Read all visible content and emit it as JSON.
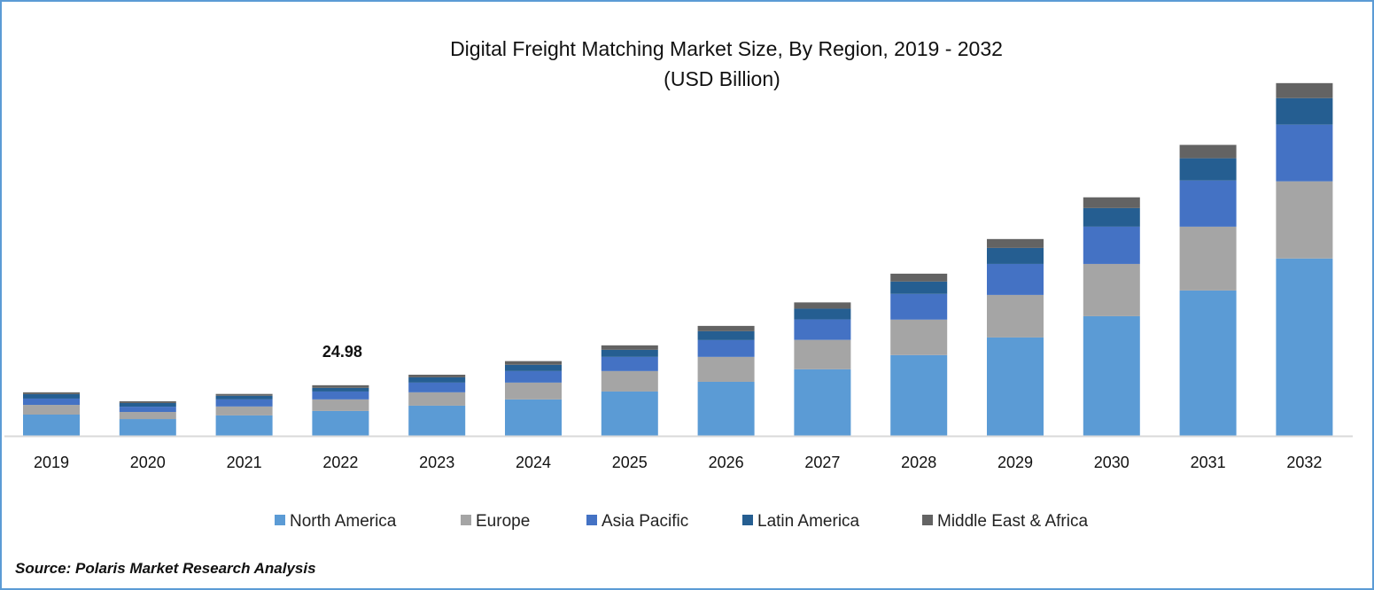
{
  "chart_data": {
    "type": "bar",
    "stacked": true,
    "title": "Digital Freight Matching Market Size, By Region, 2019 - 2032",
    "subtitle": "(USD Billion)",
    "xlabel": "",
    "ylabel": "",
    "ylim": [
      0,
      175
    ],
    "grid": false,
    "legend_position": "bottom",
    "categories": [
      "2019",
      "2020",
      "2021",
      "2022",
      "2023",
      "2024",
      "2025",
      "2026",
      "2027",
      "2028",
      "2029",
      "2030",
      "2031",
      "2032"
    ],
    "series": [
      {
        "name": "North America",
        "color": "#5b9bd5",
        "values": [
          10.5,
          8.3,
          10.1,
          12.3,
          14.9,
          18.0,
          21.9,
          26.7,
          32.9,
          39.9,
          48.6,
          59.1,
          71.8,
          87.6
        ]
      },
      {
        "name": "Europe",
        "color": "#a5a5a5",
        "values": [
          4.8,
          3.5,
          4.4,
          5.7,
          6.6,
          8.3,
          10.1,
          12.3,
          14.5,
          17.5,
          21.0,
          25.8,
          31.5,
          38.1
        ]
      },
      {
        "name": "Asia Pacific",
        "color": "#4472c4",
        "values": [
          3.1,
          2.6,
          3.5,
          3.9,
          4.8,
          5.7,
          7.0,
          8.3,
          10.1,
          12.7,
          15.3,
          18.4,
          22.8,
          28.0
        ]
      },
      {
        "name": "Latin America",
        "color": "#255e91",
        "values": [
          2.2,
          1.8,
          1.8,
          1.8,
          2.6,
          3.1,
          3.5,
          4.4,
          5.3,
          6.1,
          7.9,
          9.2,
          11.0,
          13.1
        ]
      },
      {
        "name": "Middle East & Africa",
        "color": "#636363",
        "values": [
          0.9,
          0.9,
          0.9,
          1.3,
          1.3,
          1.8,
          2.2,
          2.6,
          3.1,
          3.9,
          4.4,
          5.3,
          6.6,
          7.4
        ]
      }
    ],
    "annotations": [
      {
        "category": "2022",
        "text": "24.98"
      }
    ]
  },
  "source": "Source: Polaris Market Research Analysis",
  "border_color": "#5b9bd5"
}
